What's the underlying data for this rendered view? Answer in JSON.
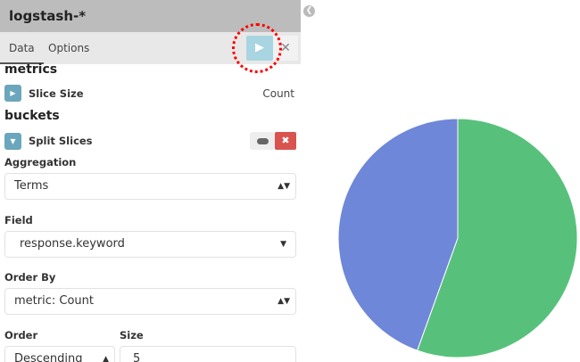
{
  "header": {
    "title": "logstash-*"
  },
  "tabs": [
    {
      "label": "Data",
      "active": true
    },
    {
      "label": "Options",
      "active": false
    }
  ],
  "icons": {
    "apply": "play-icon",
    "discard": "close-icon",
    "collapse": "chevron-left-icon"
  },
  "metrics": {
    "heading": "metrics",
    "item": {
      "label": "Slice Size",
      "value": "Count"
    }
  },
  "buckets": {
    "heading": "buckets",
    "item": {
      "label": "Split Slices"
    },
    "aggregation": {
      "label": "Aggregation",
      "value": "Terms"
    },
    "field": {
      "label": "Field",
      "value": "response.keyword"
    },
    "order_by": {
      "label": "Order By",
      "value": "metric: Count"
    },
    "order": {
      "label": "Order",
      "value": "Descending"
    },
    "size": {
      "label": "Size",
      "value": "5"
    }
  },
  "colors": {
    "accent": "#6aa6bc",
    "remove": "#d9534f",
    "slice_green": "#57c17b",
    "slice_blue": "#6f87d8"
  },
  "chart_data": {
    "type": "pie",
    "values": [
      55.5,
      44.5
    ],
    "colors": [
      "#57c17b",
      "#6f87d8"
    ]
  }
}
